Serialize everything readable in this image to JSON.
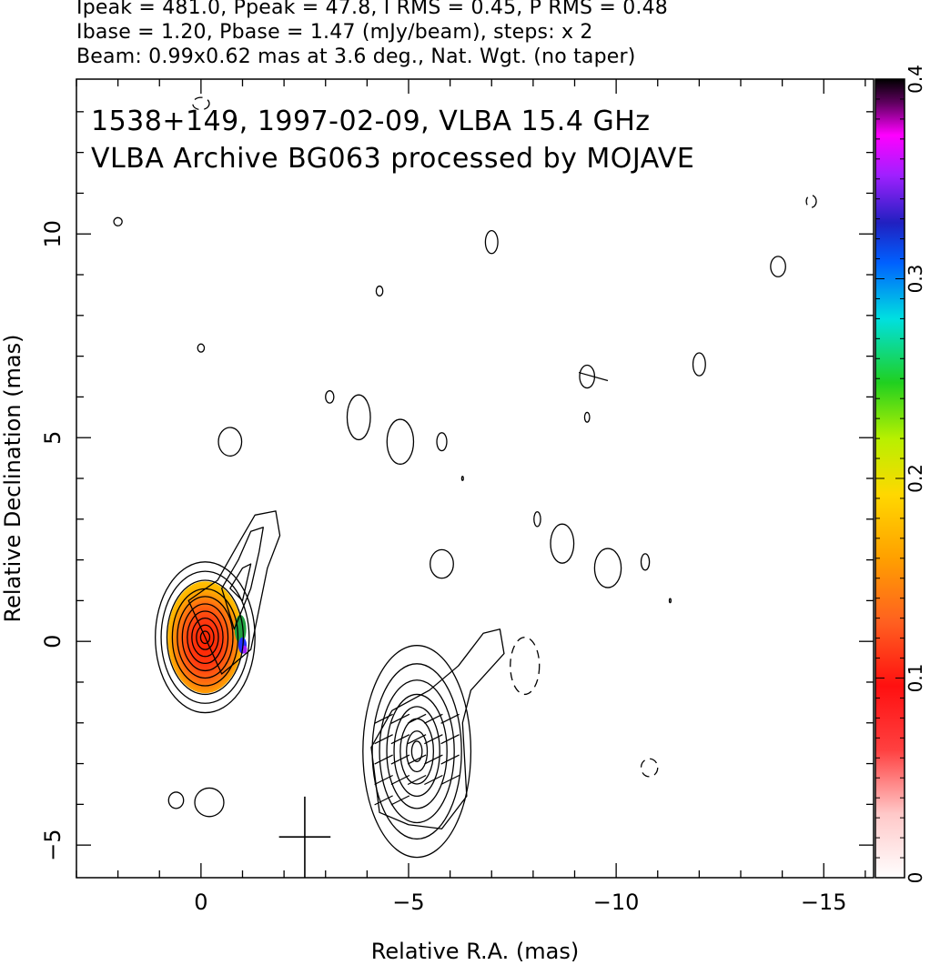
{
  "header": {
    "line1": "Ipeak = 481.0, Ppeak = 47.8, I RMS = 0.45, P RMS = 0.48",
    "line2": "Ibase = 1.20, Pbase = 1.47 (mJy/beam), steps: x 2",
    "line3": "Beam: 0.99x0.62 mas at 3.6 deg., Nat. Wgt. (no taper)"
  },
  "chart_data": {
    "type": "contour",
    "title_lines": [
      "1538+149, 1997-02-09, VLBA 15.4 GHz",
      "VLBA Archive BG063 processed by MOJAVE"
    ],
    "xlabel": "Relative R.A. (mas)",
    "ylabel": "Relative Declination (mas)",
    "xlim": [
      3.0,
      -16.2
    ],
    "ylim": [
      -5.8,
      13.8
    ],
    "xticks": [
      0,
      -5,
      -10,
      -15
    ],
    "xtick_labels": [
      "0",
      "−5",
      "−10",
      "−15"
    ],
    "yticks": [
      -5,
      0,
      5,
      10
    ],
    "ytick_labels": [
      "−5",
      "0",
      "5",
      "10"
    ],
    "x_minor_step": 1,
    "y_minor_step": 1,
    "contour_color": "#000000",
    "core": {
      "center": [
        -0.1,
        0.1
      ],
      "contour_radii": [
        [
          1.2,
          1.85
        ],
        [
          1.06,
          1.62
        ],
        [
          0.92,
          1.4
        ],
        [
          0.79,
          1.19
        ],
        [
          0.67,
          1.0
        ],
        [
          0.55,
          0.82
        ],
        [
          0.43,
          0.64
        ],
        [
          0.32,
          0.47
        ],
        [
          0.21,
          0.3
        ],
        [
          0.11,
          0.15
        ]
      ],
      "jet_contours": [
        [
          [
            0.5,
            -0.8
          ],
          [
            1.2,
            -0.2
          ],
          [
            1.4,
            0.8
          ],
          [
            1.6,
            1.8
          ],
          [
            1.9,
            2.6
          ],
          [
            1.8,
            3.2
          ],
          [
            1.3,
            3.1
          ],
          [
            0.9,
            2.4
          ],
          [
            0.4,
            1.5
          ],
          [
            -0.3,
            1.0
          ]
        ],
        [
          [
            0.8,
            0.3
          ],
          [
            1.2,
            1.3
          ],
          [
            1.4,
            2.2
          ],
          [
            1.5,
            2.8
          ],
          [
            1.2,
            2.7
          ],
          [
            0.9,
            2.0
          ],
          [
            0.5,
            1.3
          ]
        ],
        [
          [
            1.0,
            1.0
          ],
          [
            1.2,
            1.9
          ],
          [
            1.0,
            1.8
          ],
          [
            0.7,
            1.3
          ]
        ]
      ]
    },
    "polarization_colorbar": {
      "label_values": [
        "0",
        "0.1",
        "0.2",
        "0.3",
        "0.4"
      ],
      "min": 0,
      "max": 0.4
    },
    "dashed_contours": [
      {
        "x": -7.8,
        "y": -0.6,
        "rx": 0.35,
        "ry": 0.7
      },
      {
        "x": -10.8,
        "y": -3.1,
        "rx": 0.2,
        "ry": 0.22
      },
      {
        "x": 0.0,
        "y": 13.2,
        "rx": 0.2,
        "ry": 0.15
      },
      {
        "x": -14.7,
        "y": 10.8,
        "rx": 0.12,
        "ry": 0.15
      }
    ],
    "beam": {
      "x": -2.5,
      "y": -4.8,
      "size_x": 0.99,
      "size_y": 0.62
    }
  }
}
